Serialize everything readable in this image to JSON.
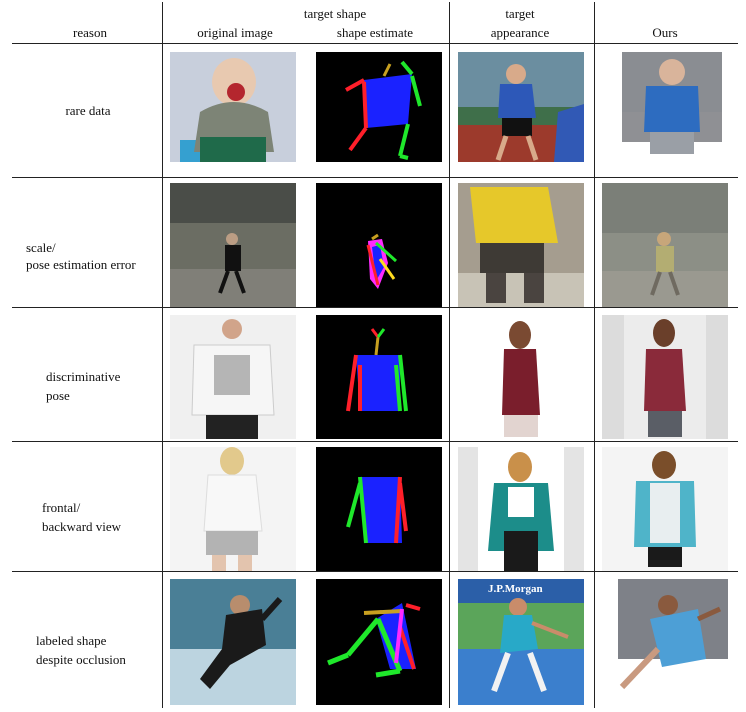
{
  "header": {
    "reason": "reason",
    "target_shape": "target shape",
    "original_image": "original image",
    "shape_estimate": "shape estimate",
    "target_appearance_line1": "target",
    "target_appearance_line2": "appearance",
    "ours": "Ours"
  },
  "rows": [
    {
      "reason_lines": [
        "rare data"
      ]
    },
    {
      "reason_lines": [
        "scale/",
        "pose estimation error"
      ]
    },
    {
      "reason_lines": [
        "discriminative",
        "pose"
      ]
    },
    {
      "reason_lines": [
        "frontal/",
        "backward view"
      ]
    },
    {
      "reason_lines": [
        "labeled shape",
        "despite occlusion"
      ]
    }
  ],
  "overlay_text": {
    "tennis_banner": "J.P.Morgan"
  },
  "colors": {
    "skeleton_torso": "#1a22ff",
    "skeleton_right": "#ff1f2a",
    "skeleton_left": "#1fe82b",
    "skeleton_head": "#c8a020",
    "background": "#000000"
  }
}
